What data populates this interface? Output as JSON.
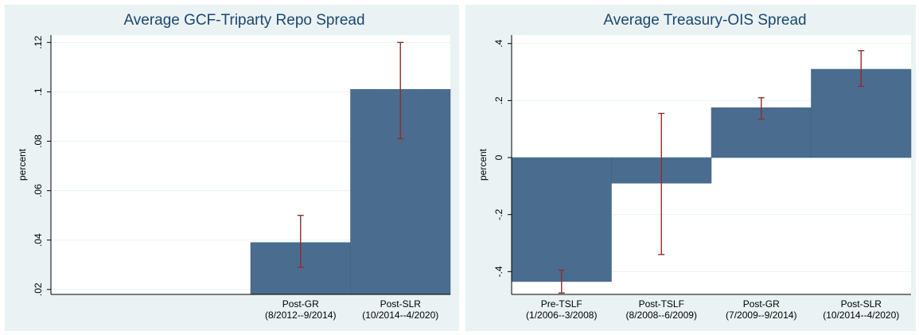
{
  "chart_data": [
    {
      "type": "bar",
      "title": "Average GCF-Triparty Repo Spread",
      "ylabel": "percent",
      "xlabel": "",
      "ylim": [
        0.018,
        0.123
      ],
      "yticks": [
        0.02,
        0.04,
        0.06,
        0.08,
        0.1,
        0.12
      ],
      "ytick_labels": [
        ".02",
        ".04",
        ".06",
        ".08",
        ".1",
        ".12"
      ],
      "grid": true,
      "categories": [
        {
          "line1": "Post-GR",
          "line2": "(8/2012--9/2014)"
        },
        {
          "line1": "Post-SLR",
          "line2": "(10/2014--4/2020)"
        }
      ],
      "values": [
        0.039,
        0.101
      ],
      "err_low": [
        0.029,
        0.081
      ],
      "err_high": [
        0.05,
        0.12
      ],
      "bar_color": "#4a6d8f",
      "error_color": "#8f2d2d"
    },
    {
      "type": "bar",
      "title": "Average Treasury-OIS Spread",
      "ylabel": "percent",
      "xlabel": "",
      "ylim": [
        -0.48,
        0.43
      ],
      "yticks": [
        -0.4,
        -0.2,
        0,
        0.2,
        0.4
      ],
      "ytick_labels": [
        "-.4",
        "-.2",
        "0",
        ".2",
        ".4"
      ],
      "grid": true,
      "categories": [
        {
          "line1": "Pre-TSLF",
          "line2": "(1/2006--3/2008)"
        },
        {
          "line1": "Post-TSLF",
          "line2": "(8/2008--6/2009)"
        },
        {
          "line1": "Post-GR",
          "line2": "(7/2009--9/2014)"
        },
        {
          "line1": "Post-SLR",
          "line2": "(10/2014--4/2020)"
        }
      ],
      "values": [
        -0.435,
        -0.09,
        0.175,
        0.31
      ],
      "err_low": [
        -0.475,
        -0.34,
        0.135,
        0.25
      ],
      "err_high": [
        -0.395,
        0.155,
        0.21,
        0.375
      ],
      "bar_color": "#4a6d8f",
      "error_color": "#8f2d2d"
    }
  ]
}
